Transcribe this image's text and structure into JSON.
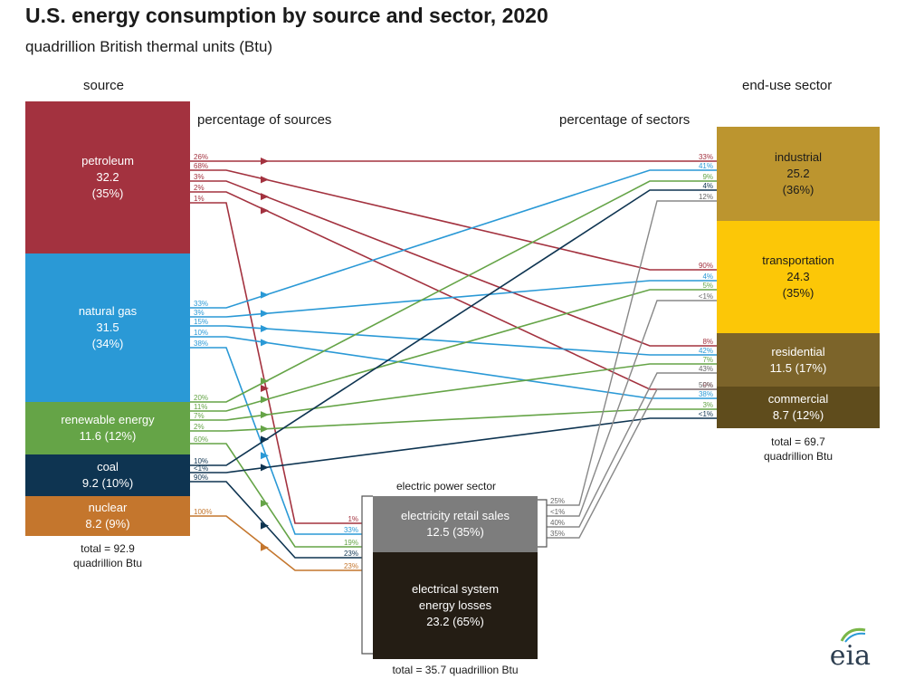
{
  "title": "U.S. energy consumption by source and sector, 2020",
  "subtitle": "quadrillion British thermal units (Btu)",
  "headers": {
    "source": "source",
    "sector": "end-use sector",
    "pct_sources": "percentage of sources",
    "pct_sectors": "percentage of sectors",
    "electric": "electric power sector"
  },
  "sources": [
    {
      "name": "petroleum",
      "value": "32.2",
      "pct": "(35%)",
      "color": "#a3323f"
    },
    {
      "name": "natural gas",
      "value": "31.5",
      "pct": "(34%)",
      "color": "#2a99d6"
    },
    {
      "name": "renewable energy",
      "value": "11.6 (12%)",
      "color": "#65a447"
    },
    {
      "name": "coal",
      "value": "9.2 (10%)",
      "color": "#0e3451"
    },
    {
      "name": "nuclear",
      "value": "8.2 (9%)",
      "color": "#c4762d"
    }
  ],
  "source_total": {
    "line1": "total = 92.9",
    "line2": "quadrillion Btu"
  },
  "sectors": [
    {
      "name": "industrial",
      "value": "25.2",
      "pct": "(36%)",
      "color": "#bc952f"
    },
    {
      "name": "transportation",
      "value": "24.3",
      "pct": "(35%)",
      "color": "#fcc707"
    },
    {
      "name": "residential",
      "value": "11.5 (17%)",
      "color": "#7c642a"
    },
    {
      "name": "commercial",
      "value": "8.7 (12%)",
      "color": "#5f4c1c"
    }
  ],
  "sector_total": {
    "line1": "total = 69.7",
    "line2": "quadrillion Btu"
  },
  "electric": {
    "retail": {
      "name": "electricity retail sales",
      "value": "12.5 (35%)",
      "color": "#7d7d7d"
    },
    "losses": {
      "name1": "electrical system",
      "name2": "energy losses",
      "value": "23.2 (65%)",
      "color": "#241d14"
    },
    "total": "total = 35.7 quadrillion Btu"
  },
  "flows": [
    {
      "from": 0,
      "to": "industrial",
      "src_pct": "26%",
      "dst_pct": "33%",
      "color": "#a3323f"
    },
    {
      "from": 0,
      "to": "transportation",
      "src_pct": "68%",
      "dst_pct": "90%",
      "color": "#a3323f"
    },
    {
      "from": 0,
      "to": "residential",
      "src_pct": "3%",
      "dst_pct": "8%",
      "color": "#a3323f"
    },
    {
      "from": 0,
      "to": "commercial",
      "src_pct": "2%",
      "dst_pct": "9%",
      "color": "#a3323f"
    },
    {
      "from": 0,
      "to": "electric",
      "src_pct": "1%",
      "dst_pct": "1%",
      "color": "#a3323f"
    },
    {
      "from": 1,
      "to": "industrial",
      "src_pct": "33%",
      "dst_pct": "41%",
      "color": "#2a99d6"
    },
    {
      "from": 1,
      "to": "transportation",
      "src_pct": "3%",
      "dst_pct": "4%",
      "color": "#2a99d6"
    },
    {
      "from": 1,
      "to": "residential",
      "src_pct": "15%",
      "dst_pct": "42%",
      "color": "#2a99d6"
    },
    {
      "from": 1,
      "to": "commercial",
      "src_pct": "10%",
      "dst_pct": "38%",
      "color": "#2a99d6"
    },
    {
      "from": 1,
      "to": "electric",
      "src_pct": "38%",
      "dst_pct": "33%",
      "color": "#2a99d6"
    },
    {
      "from": 2,
      "to": "industrial",
      "src_pct": "20%",
      "dst_pct": "9%",
      "color": "#65a447"
    },
    {
      "from": 2,
      "to": "transportation",
      "src_pct": "11%",
      "dst_pct": "5%",
      "color": "#65a447"
    },
    {
      "from": 2,
      "to": "residential",
      "src_pct": "7%",
      "dst_pct": "7%",
      "color": "#65a447"
    },
    {
      "from": 2,
      "to": "commercial",
      "src_pct": "2%",
      "dst_pct": "3%",
      "color": "#65a447"
    },
    {
      "from": 2,
      "to": "electric",
      "src_pct": "60%",
      "dst_pct": "19%",
      "color": "#65a447"
    },
    {
      "from": 3,
      "to": "industrial",
      "src_pct": "10%",
      "dst_pct": "4%",
      "color": "#0e3451"
    },
    {
      "from": 3,
      "to": "commercial",
      "src_pct": "<1%",
      "dst_pct": "<1%",
      "color": "#0e3451"
    },
    {
      "from": 3,
      "to": "electric",
      "src_pct": "90%",
      "dst_pct": "23%",
      "color": "#0e3451"
    },
    {
      "from": 4,
      "to": "electric",
      "src_pct": "100%",
      "dst_pct": "23%",
      "color": "#c4762d"
    }
  ],
  "retail_flows": [
    {
      "to": "industrial",
      "src_pct": "25%",
      "dst_pct": "12%"
    },
    {
      "to": "transportation",
      "src_pct": "<1%",
      "dst_pct": "<1%"
    },
    {
      "to": "residential",
      "src_pct": "40%",
      "dst_pct": "43%"
    },
    {
      "to": "commercial",
      "src_pct": "35%",
      "dst_pct": "50%"
    }
  ],
  "logo": "eia"
}
